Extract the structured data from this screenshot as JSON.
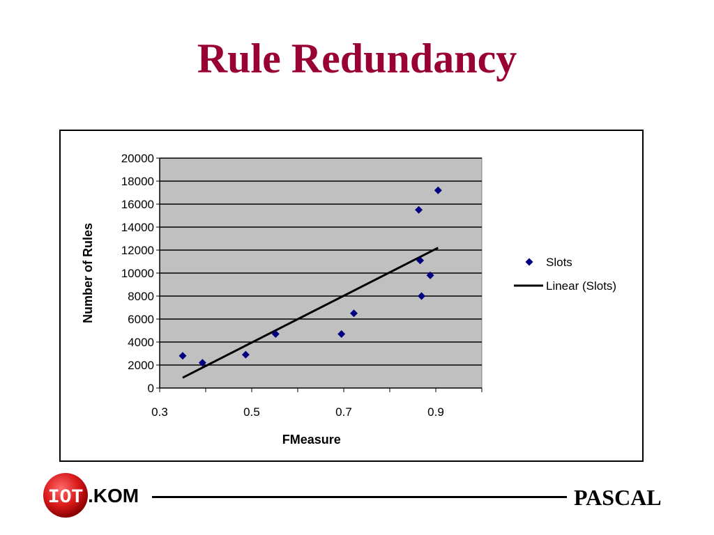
{
  "slide": {
    "title": "Rule Redundancy",
    "footer_logo_text": ".KOM",
    "footer_logo_prefix": "IOT",
    "footer_right": "PASCAL",
    "title_color": "#990033"
  },
  "chart_data": {
    "type": "scatter",
    "title": "",
    "xlabel": "FMeasure",
    "ylabel": "Number of Rules",
    "xlim": [
      0.3,
      1.0
    ],
    "ylim": [
      0,
      20000
    ],
    "xticks": [
      0.3,
      0.5,
      0.7,
      0.9
    ],
    "yticks": [
      0,
      2000,
      4000,
      6000,
      8000,
      10000,
      12000,
      14000,
      16000,
      18000,
      20000
    ],
    "grid": true,
    "plot_background": "#c0c0c0",
    "legend_position": "right",
    "series": [
      {
        "name": "Slots",
        "marker": "diamond",
        "color": "#000080",
        "points": [
          [
            0.35,
            2800
          ],
          [
            0.393,
            2200
          ],
          [
            0.487,
            2900
          ],
          [
            0.552,
            4700
          ],
          [
            0.695,
            4700
          ],
          [
            0.722,
            6500
          ],
          [
            0.863,
            15500
          ],
          [
            0.866,
            11100
          ],
          [
            0.869,
            8000
          ],
          [
            0.888,
            9800
          ],
          [
            0.905,
            17200
          ]
        ]
      },
      {
        "name": "Linear (Slots)",
        "type": "line",
        "color": "#000000",
        "points": [
          [
            0.35,
            900
          ],
          [
            0.905,
            12200
          ]
        ]
      }
    ]
  }
}
